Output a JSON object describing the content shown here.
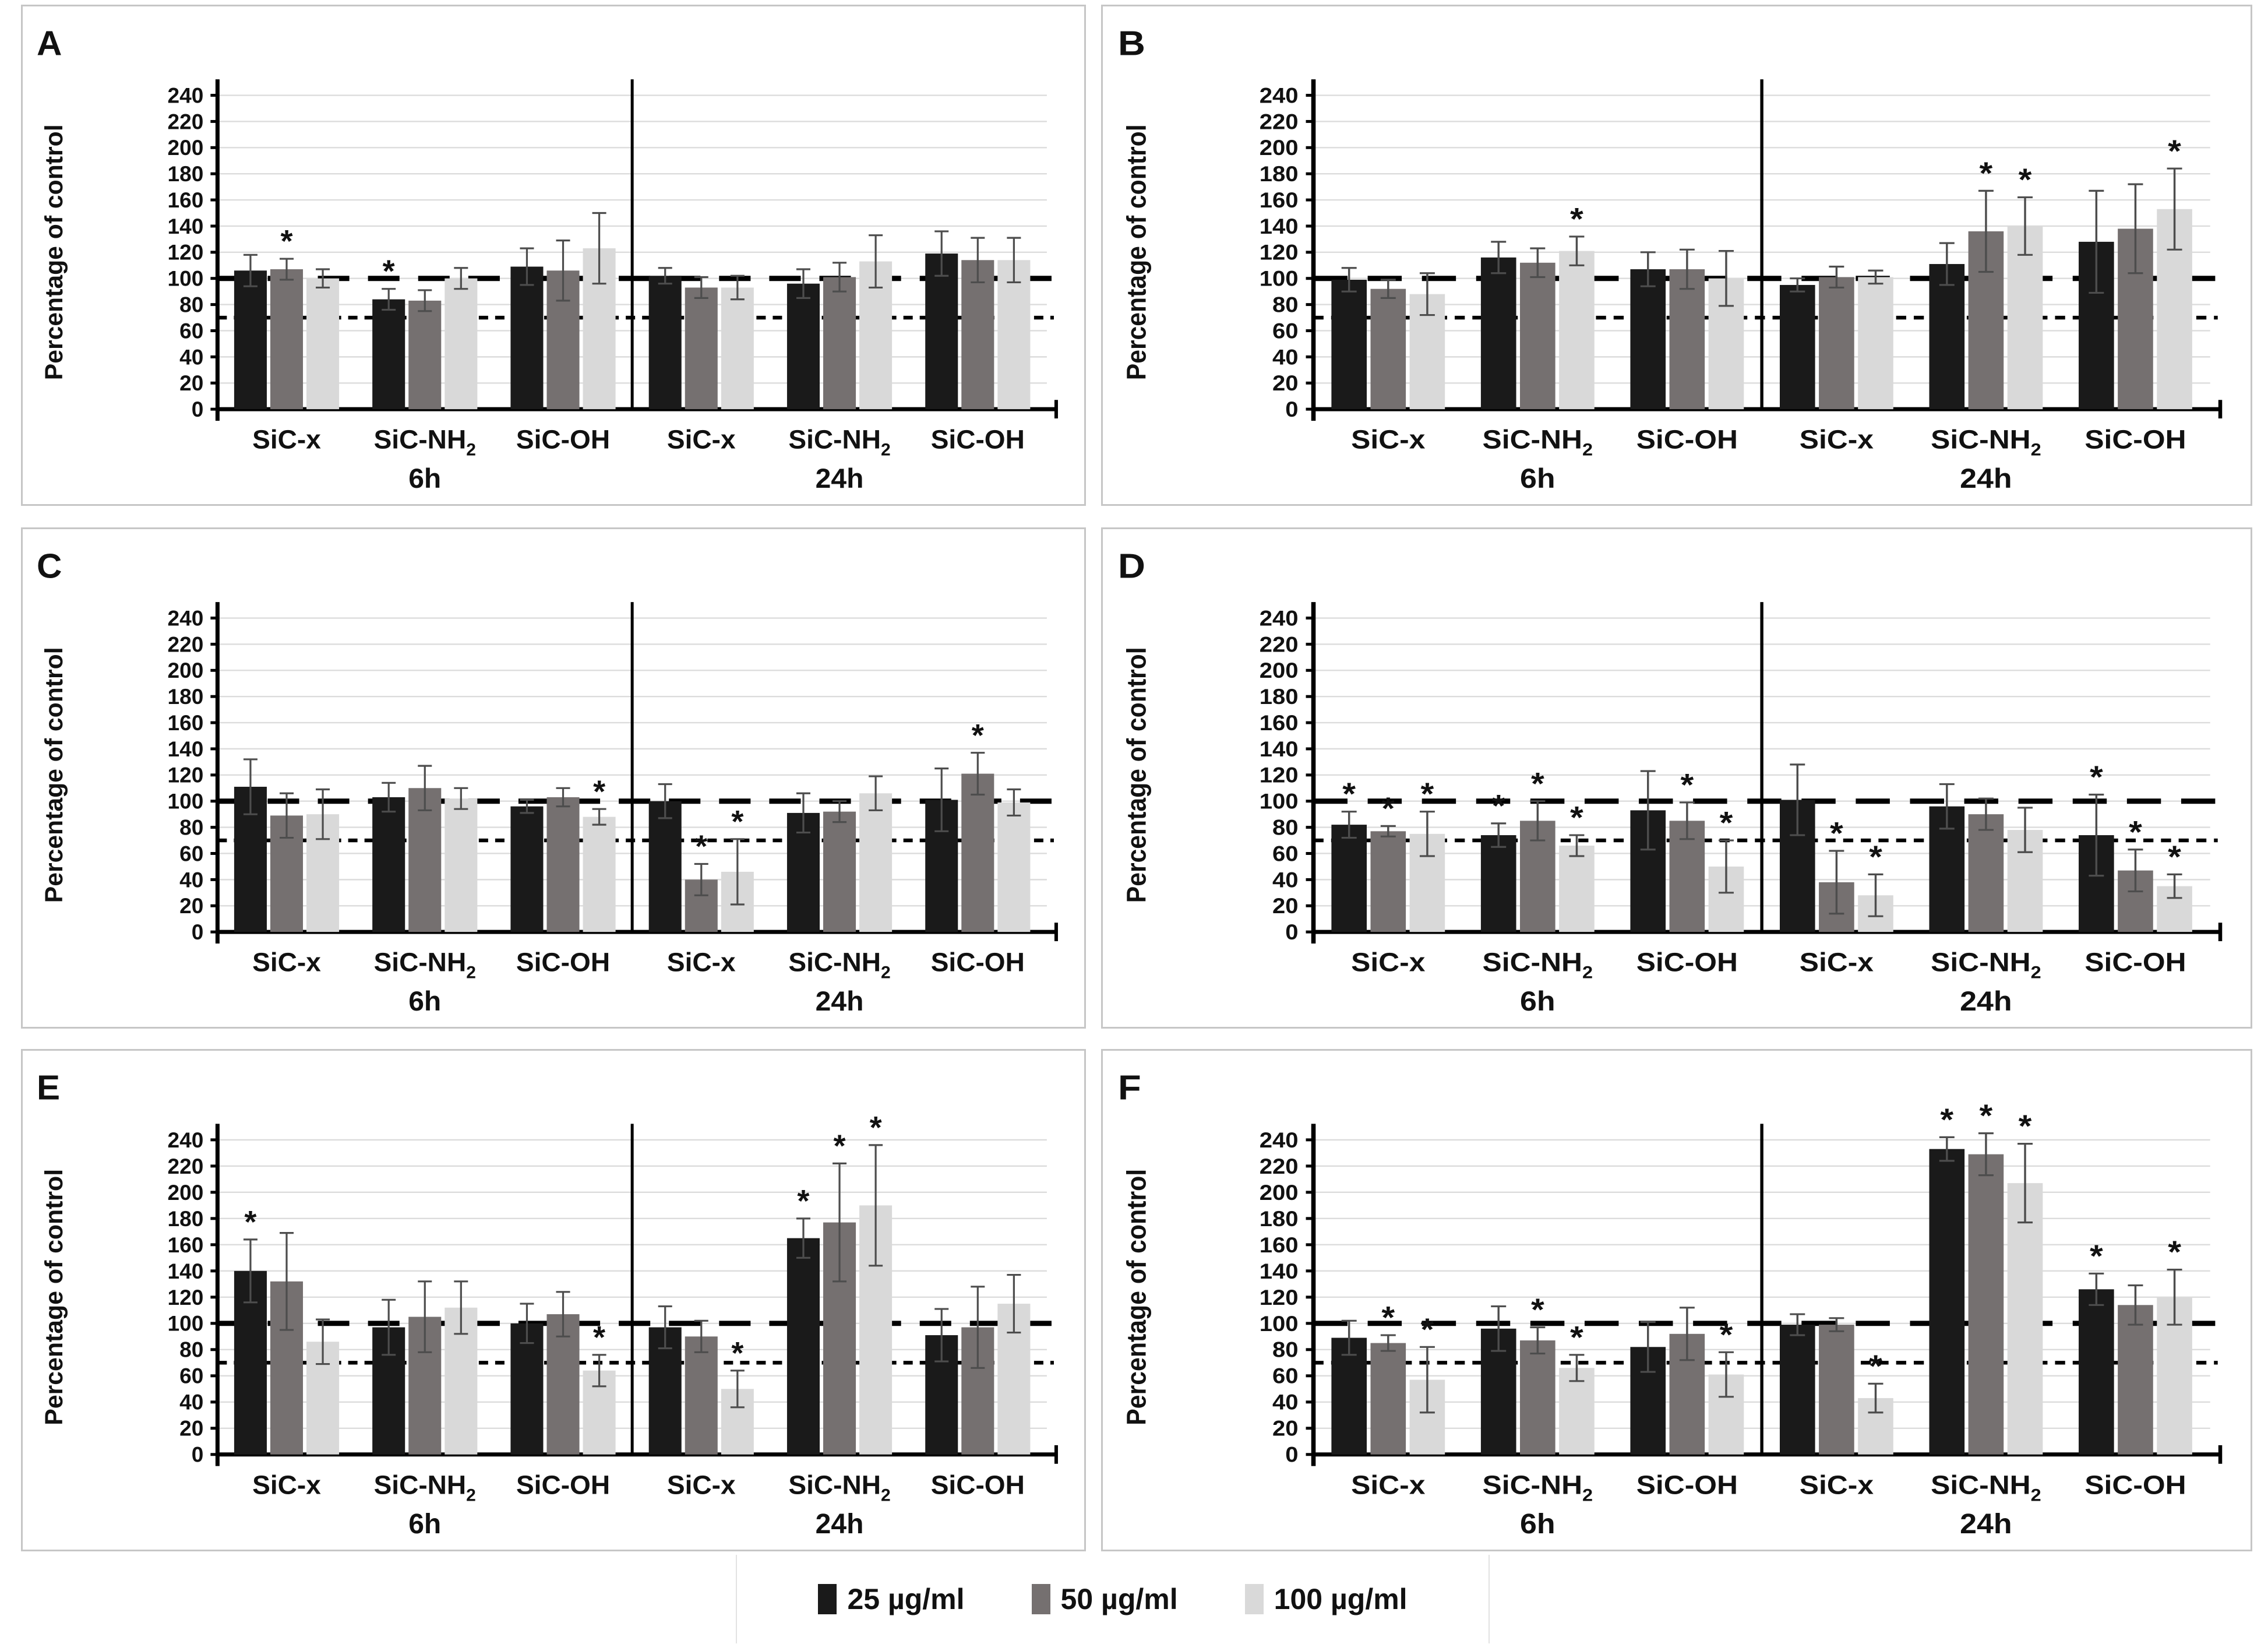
{
  "figure": {
    "panel_letters": [
      "A",
      "B",
      "C",
      "D",
      "E",
      "F"
    ]
  },
  "chart_data": {
    "type": "bar",
    "title": "",
    "xlabel": "",
    "ylabel": "Percentage of control",
    "ylim": [
      0,
      240
    ],
    "ytick_step": 20,
    "yticks": [
      0,
      20,
      40,
      60,
      80,
      100,
      120,
      140,
      160,
      180,
      200,
      220,
      240
    ],
    "grid": true,
    "legend_position": "bottom",
    "sig_marker": "*",
    "reference_lines": [
      {
        "value": 100,
        "style": "long-dash"
      },
      {
        "value": 70,
        "style": "short-dash"
      }
    ],
    "time_groups": [
      "6h",
      "24h"
    ],
    "categories": [
      {
        "label": "SiC-x",
        "base": "SiC-x",
        "sub": ""
      },
      {
        "label": "SiC-NH2",
        "base": "SiC-NH",
        "sub": "2"
      },
      {
        "label": "SiC-OH",
        "base": "SiC-OH",
        "sub": ""
      }
    ],
    "series": [
      {
        "name": "25 µg/ml",
        "color": "#1a1a1a"
      },
      {
        "name": "50 µg/ml",
        "color": "#757070"
      },
      {
        "name": "100 µg/ml",
        "color": "#d9d9d9"
      }
    ],
    "panels": [
      {
        "label": "A",
        "groups": [
          {
            "time": "6h",
            "category": "SiC-x",
            "values": [
              106,
              107,
              100
            ],
            "errors": [
              12,
              8,
              7
            ],
            "sig": [
              0,
              1,
              0
            ]
          },
          {
            "time": "6h",
            "category": "SiC-NH2",
            "values": [
              84,
              83,
              100
            ],
            "errors": [
              8,
              8,
              8
            ],
            "sig": [
              1,
              0,
              0
            ]
          },
          {
            "time": "6h",
            "category": "SiC-OH",
            "values": [
              109,
              106,
              123
            ],
            "errors": [
              14,
              23,
              27
            ],
            "sig": [
              0,
              0,
              0
            ]
          },
          {
            "time": "24h",
            "category": "SiC-x",
            "values": [
              102,
              93,
              93
            ],
            "errors": [
              6,
              8,
              9
            ],
            "sig": [
              0,
              0,
              0
            ]
          },
          {
            "time": "24h",
            "category": "SiC-NH2",
            "values": [
              96,
              101,
              113
            ],
            "errors": [
              11,
              11,
              20
            ],
            "sig": [
              0,
              0,
              0
            ]
          },
          {
            "time": "24h",
            "category": "SiC-OH",
            "values": [
              119,
              114,
              114
            ],
            "errors": [
              17,
              17,
              17
            ],
            "sig": [
              0,
              0,
              0
            ]
          }
        ]
      },
      {
        "label": "B",
        "groups": [
          {
            "time": "6h",
            "category": "SiC-x",
            "values": [
              99,
              92,
              88
            ],
            "errors": [
              9,
              7,
              16
            ],
            "sig": [
              0,
              0,
              0
            ]
          },
          {
            "time": "6h",
            "category": "SiC-NH2",
            "values": [
              116,
              112,
              121
            ],
            "errors": [
              12,
              11,
              11
            ],
            "sig": [
              0,
              0,
              1
            ]
          },
          {
            "time": "6h",
            "category": "SiC-OH",
            "values": [
              107,
              107,
              100
            ],
            "errors": [
              13,
              15,
              21
            ],
            "sig": [
              0,
              0,
              0
            ]
          },
          {
            "time": "24h",
            "category": "SiC-x",
            "values": [
              95,
              101,
              101
            ],
            "errors": [
              5,
              8,
              5
            ],
            "sig": [
              0,
              0,
              0
            ]
          },
          {
            "time": "24h",
            "category": "SiC-NH2",
            "values": [
              111,
              136,
              140
            ],
            "errors": [
              16,
              31,
              22
            ],
            "sig": [
              0,
              1,
              1
            ]
          },
          {
            "time": "24h",
            "category": "SiC-OH",
            "values": [
              128,
              138,
              153
            ],
            "errors": [
              39,
              34,
              31
            ],
            "sig": [
              0,
              0,
              1
            ]
          }
        ]
      },
      {
        "label": "C",
        "groups": [
          {
            "time": "6h",
            "category": "SiC-x",
            "values": [
              111,
              89,
              90
            ],
            "errors": [
              21,
              17,
              19
            ],
            "sig": [
              0,
              0,
              0
            ]
          },
          {
            "time": "6h",
            "category": "SiC-NH2",
            "values": [
              103,
              110,
              102
            ],
            "errors": [
              11,
              17,
              8
            ],
            "sig": [
              0,
              0,
              0
            ]
          },
          {
            "time": "6h",
            "category": "SiC-OH",
            "values": [
              96,
              103,
              88
            ],
            "errors": [
              5,
              7,
              6
            ],
            "sig": [
              0,
              0,
              1
            ]
          },
          {
            "time": "24h",
            "category": "SiC-x",
            "values": [
              100,
              40,
              46
            ],
            "errors": [
              13,
              12,
              25
            ],
            "sig": [
              0,
              1,
              1
            ]
          },
          {
            "time": "24h",
            "category": "SiC-NH2",
            "values": [
              91,
              92,
              106
            ],
            "errors": [
              15,
              8,
              13
            ],
            "sig": [
              0,
              0,
              0
            ]
          },
          {
            "time": "24h",
            "category": "SiC-OH",
            "values": [
              101,
              121,
              99
            ],
            "errors": [
              24,
              16,
              10
            ],
            "sig": [
              0,
              1,
              0
            ]
          }
        ]
      },
      {
        "label": "D",
        "groups": [
          {
            "time": "6h",
            "category": "SiC-x",
            "values": [
              82,
              77,
              75
            ],
            "errors": [
              10,
              4,
              17
            ],
            "sig": [
              1,
              1,
              1
            ]
          },
          {
            "time": "6h",
            "category": "SiC-NH2",
            "values": [
              74,
              85,
              66
            ],
            "errors": [
              9,
              15,
              8
            ],
            "sig": [
              1,
              1,
              1
            ]
          },
          {
            "time": "6h",
            "category": "SiC-OH",
            "values": [
              93,
              85,
              50
            ],
            "errors": [
              30,
              14,
              20
            ],
            "sig": [
              0,
              1,
              1
            ]
          },
          {
            "time": "24h",
            "category": "SiC-x",
            "values": [
              101,
              38,
              28
            ],
            "errors": [
              27,
              24,
              16
            ],
            "sig": [
              0,
              1,
              1
            ]
          },
          {
            "time": "24h",
            "category": "SiC-NH2",
            "values": [
              96,
              90,
              78
            ],
            "errors": [
              17,
              12,
              17
            ],
            "sig": [
              0,
              0,
              0
            ]
          },
          {
            "time": "24h",
            "category": "SiC-OH",
            "values": [
              74,
              47,
              35
            ],
            "errors": [
              31,
              16,
              9
            ],
            "sig": [
              1,
              1,
              1
            ]
          }
        ]
      },
      {
        "label": "E",
        "groups": [
          {
            "time": "6h",
            "category": "SiC-x",
            "values": [
              140,
              132,
              86
            ],
            "errors": [
              24,
              37,
              17
            ],
            "sig": [
              1,
              0,
              0
            ]
          },
          {
            "time": "6h",
            "category": "SiC-NH2",
            "values": [
              97,
              105,
              112
            ],
            "errors": [
              21,
              27,
              20
            ],
            "sig": [
              0,
              0,
              0
            ]
          },
          {
            "time": "6h",
            "category": "SiC-OH",
            "values": [
              100,
              107,
              64
            ],
            "errors": [
              15,
              17,
              12
            ],
            "sig": [
              0,
              0,
              1
            ]
          },
          {
            "time": "24h",
            "category": "SiC-x",
            "values": [
              97,
              90,
              50
            ],
            "errors": [
              16,
              12,
              14
            ],
            "sig": [
              0,
              0,
              1
            ]
          },
          {
            "time": "24h",
            "category": "SiC-NH2",
            "values": [
              165,
              177,
              190
            ],
            "errors": [
              15,
              45,
              46
            ],
            "sig": [
              1,
              1,
              1
            ]
          },
          {
            "time": "24h",
            "category": "SiC-OH",
            "values": [
              91,
              97,
              115
            ],
            "errors": [
              20,
              31,
              22
            ],
            "sig": [
              0,
              0,
              0
            ]
          }
        ]
      },
      {
        "label": "F",
        "groups": [
          {
            "time": "6h",
            "category": "SiC-x",
            "values": [
              89,
              85,
              57
            ],
            "errors": [
              13,
              6,
              25
            ],
            "sig": [
              0,
              1,
              1
            ]
          },
          {
            "time": "6h",
            "category": "SiC-NH2",
            "values": [
              96,
              87,
              66
            ],
            "errors": [
              17,
              10,
              10
            ],
            "sig": [
              0,
              1,
              1
            ]
          },
          {
            "time": "6h",
            "category": "SiC-OH",
            "values": [
              82,
              92,
              61
            ],
            "errors": [
              19,
              20,
              17
            ],
            "sig": [
              0,
              0,
              1
            ]
          },
          {
            "time": "24h",
            "category": "SiC-x",
            "values": [
              99,
              99,
              43
            ],
            "errors": [
              8,
              5,
              11
            ],
            "sig": [
              0,
              0,
              1
            ]
          },
          {
            "time": "24h",
            "category": "SiC-NH2",
            "values": [
              233,
              229,
              207
            ],
            "errors": [
              9,
              16,
              30
            ],
            "sig": [
              1,
              1,
              1
            ]
          },
          {
            "time": "24h",
            "category": "SiC-OH",
            "values": [
              126,
              114,
              120
            ],
            "errors": [
              12,
              15,
              21
            ],
            "sig": [
              1,
              0,
              1
            ]
          }
        ]
      }
    ]
  }
}
